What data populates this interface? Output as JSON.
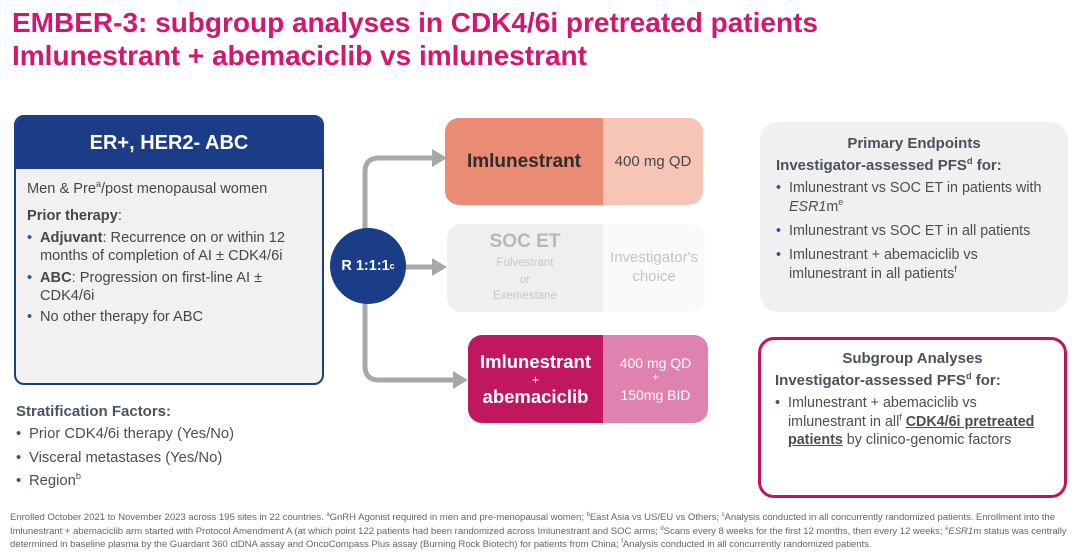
{
  "title": {
    "line1": "EMBER-3: subgroup analyses in CDK4/6i pretreated patients",
    "line2": "Imlunestrant + abemaciclib vs imlunestrant"
  },
  "eligibility": {
    "header": "ER+, HER2- ABC",
    "intro": "Men & Pre^{a}/post menopausal women",
    "prior_label": "**Prior therapy**:",
    "bullets": [
      "**Adjuvant**: Recurrence on or within 12 months of completion of AI ± CDK4/6i",
      "**ABC**: Progression on first-line AI ± CDK4/6i",
      "No other therapy for ABC"
    ]
  },
  "stratification": {
    "heading": "Stratification Factors:",
    "bullets": [
      "Prior CDK4/6i therapy (Yes/No)",
      "Visceral metastases (Yes/No)",
      "Region^{b}"
    ]
  },
  "randomization": {
    "label": "R 1:1:1^{c}"
  },
  "arms": {
    "imlunestrant": {
      "name": "Imlunestrant",
      "dose": "400 mg QD"
    },
    "soc_et": {
      "name": "SOC ET",
      "sub": [
        "Fulvestrant",
        "or",
        "Exemestane"
      ],
      "dose": "Investigator's choice"
    },
    "combo": {
      "name_line1": "Imlunestrant",
      "name_plus": "+",
      "name_line2": "abemaciclib",
      "dose_line1": "400 mg QD",
      "dose_plus": "+",
      "dose_line2": "150mg BID"
    }
  },
  "primary_endpoints": {
    "heading": "Primary Endpoints",
    "subheading": "Investigator-assessed PFS^{d} for:",
    "bullets": [
      "Imlunestrant vs SOC ET in patients with *ESR1*m^{e}",
      "Imlunestrant vs SOC ET in all patients",
      "Imlunestrant + abemaciclib vs imlunestrant in all patients^{f}"
    ]
  },
  "subgroup_analyses": {
    "heading": "Subgroup Analyses",
    "subheading": "Investigator-assessed PFS^{d} for:",
    "bullets": [
      "Imlunestrant + abemaciclib vs imlunestrant in all^{f} __CDK4/6i pretreated patients__ by clinico-genomic factors"
    ]
  },
  "footnotes": [
    "Enrolled October 2021 to November 2023 across 195 sites in 22 countries. ^{a}GnRH Agonist required in men and pre-menopausal women; ^{b}East Asia vs US/EU vs Others; ^{c}Analysis conducted in all concurrently randomized patients. Enrollment",
    "into the Imlunestrant + abemaciclib arm started with Protocol Amendment A (at which point 122 patients had been randomized across Imlunestrant and SOC arms; ^{d}Scans every 8 weeks for the first 12 months, then every 12 weeks; ^{e}*ESR1*m",
    "status was centrally determined in baseline plasma by the Guardant 360 ctDNA assay and OncoCompass Plus assay (Burning Rock Biotech) for patients from China; ^{f}Analysis conducted in all concurrently randomized patients."
  ],
  "colors": {
    "magenta": "#D3176E",
    "navy": "#1B3C86",
    "salmon": "#EA8B74",
    "salmonLight": "#F7C5B5",
    "magentaDeep": "#C0175E",
    "pink": "#DE82AF",
    "borderPink": "#C4135C",
    "grayArrow": "#A8A8A8"
  }
}
